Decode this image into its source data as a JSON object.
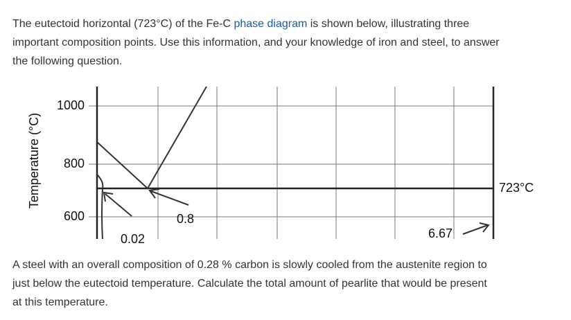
{
  "intro": {
    "before_link": "The eutectoid horizontal (723°C) of the Fe-C",
    "link": "phase diagram",
    "lines": [
      "is shown below, illustrating three",
      "important composition points. Use this information, and your knowledge of iron and steel, to answer",
      "the following question."
    ]
  },
  "diagram": {
    "y_axis_label": "Temperature (°C)",
    "y_ticks": [
      "1000",
      "800",
      "600"
    ],
    "eutectoid_label": "723°C",
    "point_labels": [
      "0.02",
      "0.8",
      "6.67"
    ]
  },
  "question": {
    "lines": [
      "A steel with an overall composition of 0.28 % carbon is slowly cooled from the austenite region to",
      "just below the eutectoid temperature. Calculate the total amount of pearlite that would be present",
      "at this temperature."
    ]
  }
}
